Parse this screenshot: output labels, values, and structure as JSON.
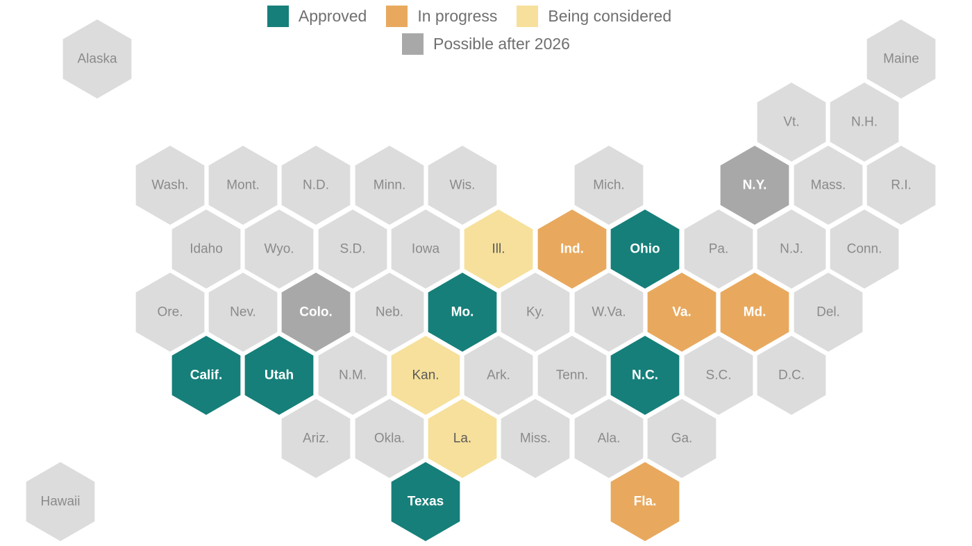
{
  "legend": [
    {
      "key": "approved",
      "label": "Approved",
      "color": "#167f7a"
    },
    {
      "key": "in_progress",
      "label": "In progress",
      "color": "#e8a95e"
    },
    {
      "key": "considered",
      "label": "Being considered",
      "color": "#f6e09b"
    },
    {
      "key": "after_2026",
      "label": "Possible after 2026",
      "color": "#a8a8a8"
    }
  ],
  "no_status_color": "#dcdcdc",
  "states": [
    {
      "name": "Alaska",
      "status": "none"
    },
    {
      "name": "Maine",
      "status": "none"
    },
    {
      "name": "Vt.",
      "status": "none"
    },
    {
      "name": "N.H.",
      "status": "none"
    },
    {
      "name": "Wash.",
      "status": "none"
    },
    {
      "name": "Mont.",
      "status": "none"
    },
    {
      "name": "N.D.",
      "status": "none"
    },
    {
      "name": "Minn.",
      "status": "none"
    },
    {
      "name": "Wis.",
      "status": "none"
    },
    {
      "name": "Mich.",
      "status": "none"
    },
    {
      "name": "N.Y.",
      "status": "after_2026"
    },
    {
      "name": "Mass.",
      "status": "none"
    },
    {
      "name": "R.I.",
      "status": "none"
    },
    {
      "name": "Idaho",
      "status": "none"
    },
    {
      "name": "Wyo.",
      "status": "none"
    },
    {
      "name": "S.D.",
      "status": "none"
    },
    {
      "name": "Iowa",
      "status": "none"
    },
    {
      "name": "Ill.",
      "status": "considered"
    },
    {
      "name": "Ind.",
      "status": "in_progress"
    },
    {
      "name": "Ohio",
      "status": "approved"
    },
    {
      "name": "Pa.",
      "status": "none"
    },
    {
      "name": "N.J.",
      "status": "none"
    },
    {
      "name": "Conn.",
      "status": "none"
    },
    {
      "name": "Ore.",
      "status": "none"
    },
    {
      "name": "Nev.",
      "status": "none"
    },
    {
      "name": "Colo.",
      "status": "after_2026"
    },
    {
      "name": "Neb.",
      "status": "none"
    },
    {
      "name": "Mo.",
      "status": "approved"
    },
    {
      "name": "Ky.",
      "status": "none"
    },
    {
      "name": "W.Va.",
      "status": "none"
    },
    {
      "name": "Va.",
      "status": "in_progress"
    },
    {
      "name": "Md.",
      "status": "in_progress"
    },
    {
      "name": "Del.",
      "status": "none"
    },
    {
      "name": "Calif.",
      "status": "approved"
    },
    {
      "name": "Utah",
      "status": "approved"
    },
    {
      "name": "N.M.",
      "status": "none"
    },
    {
      "name": "Kan.",
      "status": "considered"
    },
    {
      "name": "Ark.",
      "status": "none"
    },
    {
      "name": "Tenn.",
      "status": "none"
    },
    {
      "name": "N.C.",
      "status": "approved"
    },
    {
      "name": "S.C.",
      "status": "none"
    },
    {
      "name": "D.C.",
      "status": "none"
    },
    {
      "name": "Ariz.",
      "status": "none"
    },
    {
      "name": "Okla.",
      "status": "none"
    },
    {
      "name": "La.",
      "status": "considered"
    },
    {
      "name": "Miss.",
      "status": "none"
    },
    {
      "name": "Ala.",
      "status": "none"
    },
    {
      "name": "Ga.",
      "status": "none"
    },
    {
      "name": "Hawaii",
      "status": "none"
    },
    {
      "name": "Texas",
      "status": "approved"
    },
    {
      "name": "Fla.",
      "status": "in_progress"
    }
  ]
}
